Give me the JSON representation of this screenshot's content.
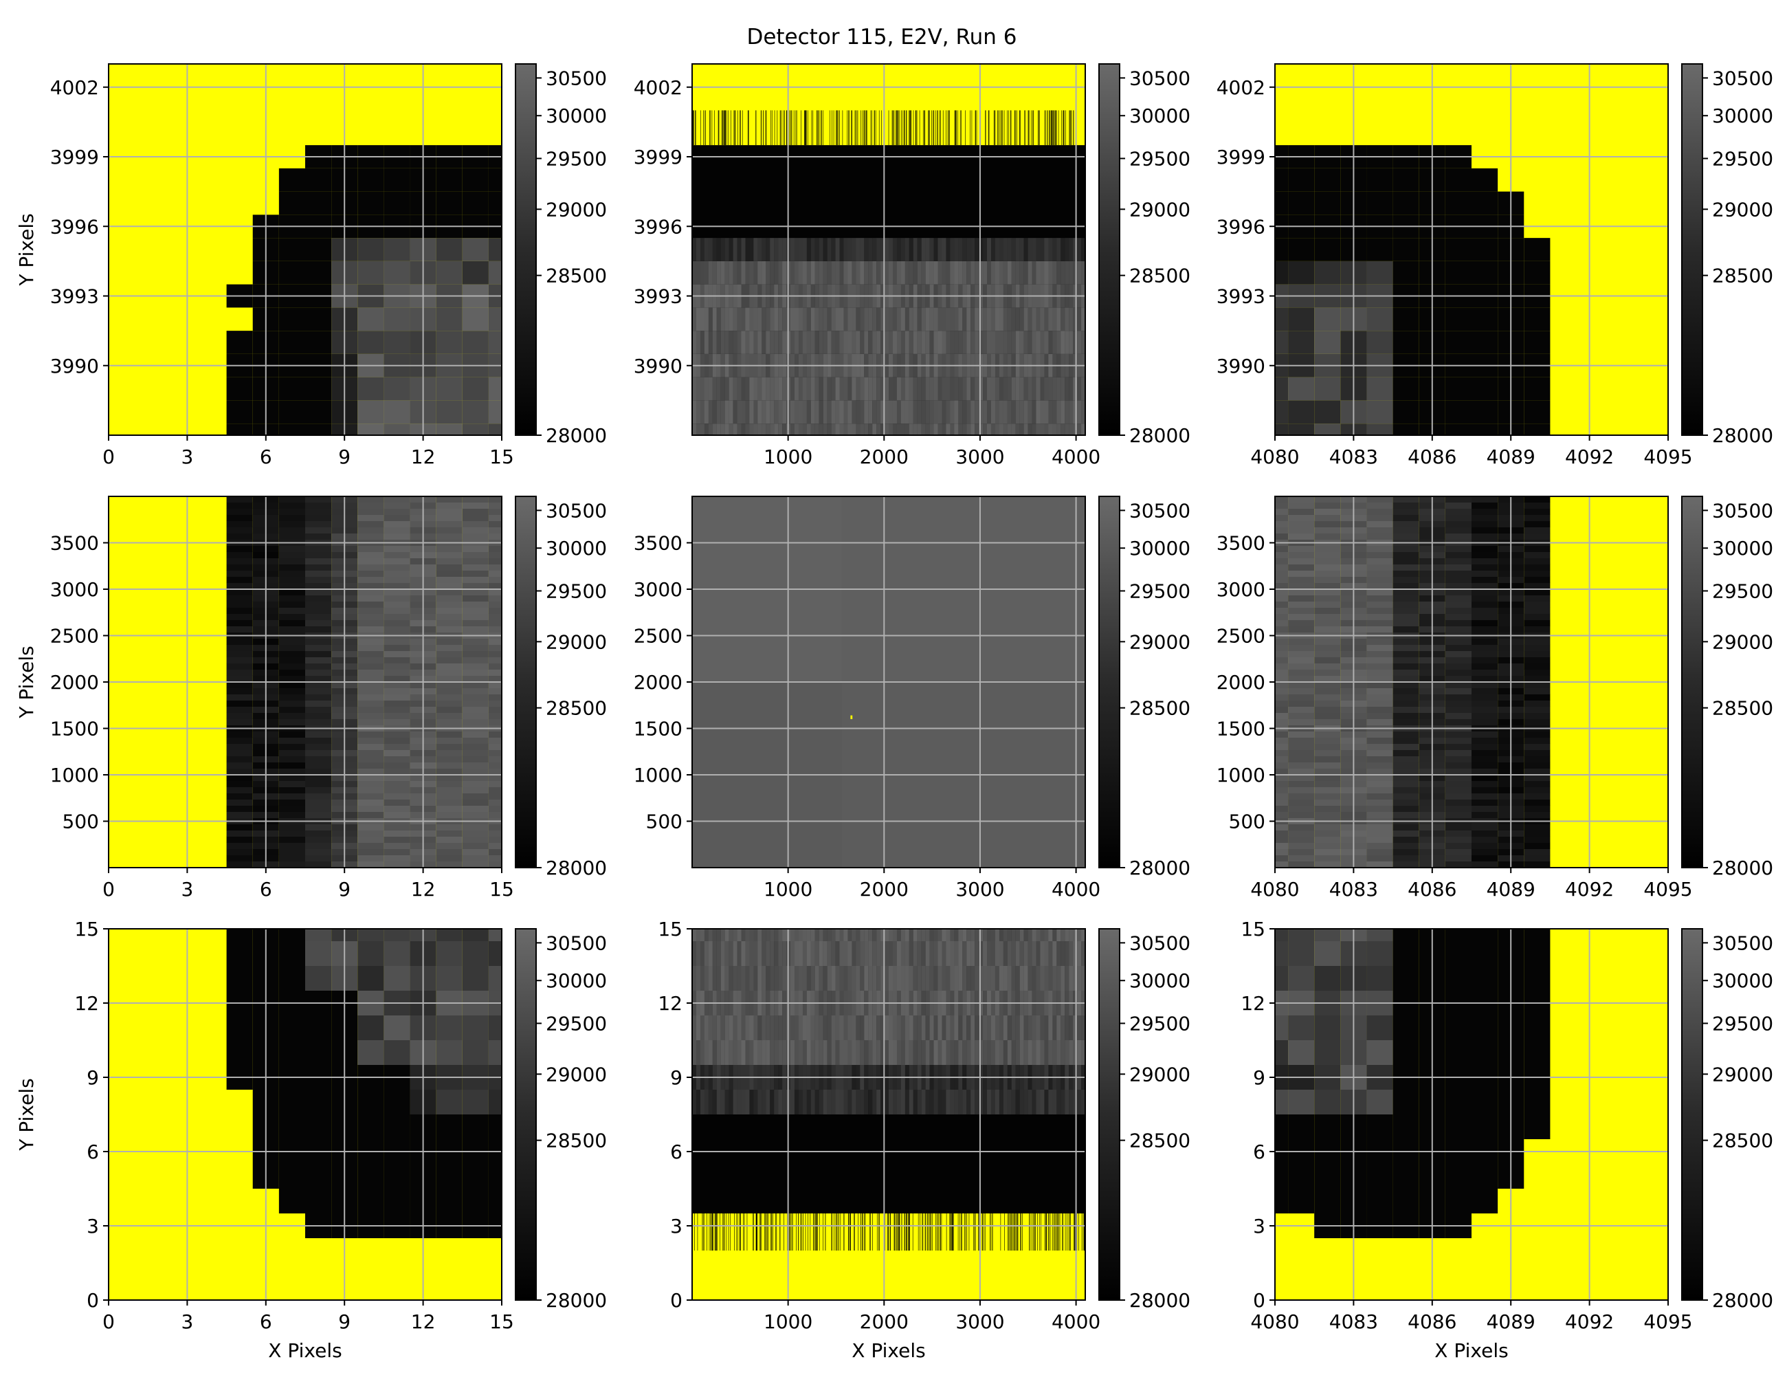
{
  "chart_data": {
    "type": "heatmap",
    "title": "Detector 115, E2V, Run 6",
    "colorbar": {
      "ticks": [
        28000,
        28500,
        29000,
        29500,
        30000,
        30500
      ],
      "range": [
        28000,
        30700
      ],
      "colormap": "gray",
      "masked_color": "#ffff00"
    },
    "panels": [
      {
        "id": "top-left",
        "xlim": [
          0,
          15
        ],
        "ylim": [
          3987,
          4003
        ],
        "xticks": [
          0,
          3,
          6,
          9,
          12,
          15
        ],
        "yticks": [
          3990,
          3993,
          3996,
          3999,
          4002
        ],
        "xlabel": "",
        "ylabel": "Y Pixels",
        "image": "corner-top-left"
      },
      {
        "id": "top-middle",
        "xlim": [
          0,
          4096
        ],
        "ylim": [
          3987,
          4003
        ],
        "xticks": [
          1000,
          2000,
          3000,
          4000
        ],
        "yticks": [
          3990,
          3993,
          3996,
          3999,
          4002
        ],
        "xlabel": "",
        "ylabel": "",
        "image": "edge-top"
      },
      {
        "id": "top-right",
        "xlim": [
          4080,
          4095
        ],
        "ylim": [
          3987,
          4003
        ],
        "xticks": [
          4080,
          4083,
          4086,
          4089,
          4092,
          4095
        ],
        "yticks": [
          3990,
          3993,
          3996,
          3999,
          4002
        ],
        "xlabel": "",
        "ylabel": "",
        "image": "corner-top-right"
      },
      {
        "id": "middle-left",
        "xlim": [
          0,
          15
        ],
        "ylim": [
          0,
          4000
        ],
        "xticks": [
          0,
          3,
          6,
          9,
          12,
          15
        ],
        "yticks": [
          500,
          1000,
          1500,
          2000,
          2500,
          3000,
          3500
        ],
        "xlabel": "",
        "ylabel": "Y Pixels",
        "image": "edge-left"
      },
      {
        "id": "center",
        "xlim": [
          0,
          4096
        ],
        "ylim": [
          0,
          4000
        ],
        "xticks": [
          1000,
          2000,
          3000,
          4000
        ],
        "yticks": [
          500,
          1000,
          1500,
          2000,
          2500,
          3000,
          3500
        ],
        "xlabel": "",
        "ylabel": "",
        "image": "full"
      },
      {
        "id": "middle-right",
        "xlim": [
          4080,
          4095
        ],
        "ylim": [
          0,
          4000
        ],
        "xticks": [
          4080,
          4083,
          4086,
          4089,
          4092,
          4095
        ],
        "yticks": [
          500,
          1000,
          1500,
          2000,
          2500,
          3000,
          3500
        ],
        "xlabel": "",
        "ylabel": "",
        "image": "edge-right"
      },
      {
        "id": "bottom-left",
        "xlim": [
          0,
          15
        ],
        "ylim": [
          0,
          15
        ],
        "xticks": [
          0,
          3,
          6,
          9,
          12,
          15
        ],
        "yticks": [
          0,
          3,
          6,
          9,
          12,
          15
        ],
        "xlabel": "X Pixels",
        "ylabel": "Y Pixels",
        "image": "corner-bottom-left"
      },
      {
        "id": "bottom-middle",
        "xlim": [
          0,
          4096
        ],
        "ylim": [
          0,
          15
        ],
        "xticks": [
          1000,
          2000,
          3000,
          4000
        ],
        "yticks": [
          0,
          3,
          6,
          9,
          12,
          15
        ],
        "xlabel": "X Pixels",
        "ylabel": "",
        "image": "edge-bottom"
      },
      {
        "id": "bottom-right",
        "xlim": [
          4080,
          4095
        ],
        "ylim": [
          0,
          15
        ],
        "xticks": [
          4080,
          4083,
          4086,
          4089,
          4092,
          4095
        ],
        "yticks": [
          0,
          3,
          6,
          9,
          12,
          15
        ],
        "xlabel": "X Pixels",
        "ylabel": "",
        "image": "corner-bottom-right"
      }
    ]
  }
}
